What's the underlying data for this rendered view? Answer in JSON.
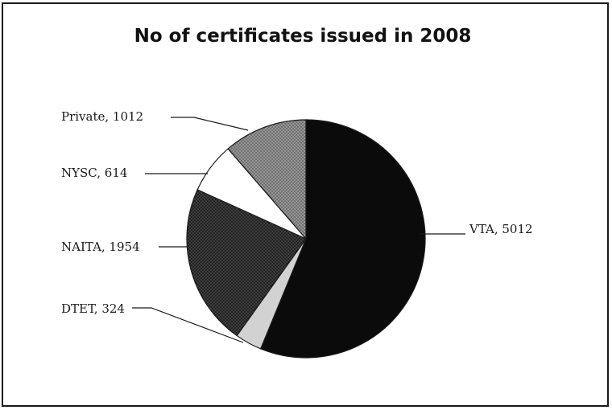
{
  "chart_data": {
    "type": "pie",
    "title": "No of certificates issued in 2008",
    "slices": [
      {
        "label": "VTA",
        "value": 5012,
        "color": "#0b0b0b",
        "pattern": "solid",
        "label_text": "VTA, 5012"
      },
      {
        "label": "DTET",
        "value": 324,
        "color": "#d2d2d2",
        "pattern": "light",
        "label_text": "DTET, 324"
      },
      {
        "label": "NAITA",
        "value": 1954,
        "color": "#3a3a3a",
        "pattern": "dark-crosshatch",
        "label_text": "NAITA, 1954"
      },
      {
        "label": "NYSC",
        "value": 614,
        "color": "#ffffff",
        "pattern": "none",
        "label_text": "NYSC, 614"
      },
      {
        "label": "Private",
        "value": 1012,
        "color": "#8c8c8c",
        "pattern": "medium-crosshatch",
        "label_text": "Private, 1012"
      }
    ],
    "start_angle_deg": 0,
    "direction": "clockwise"
  }
}
